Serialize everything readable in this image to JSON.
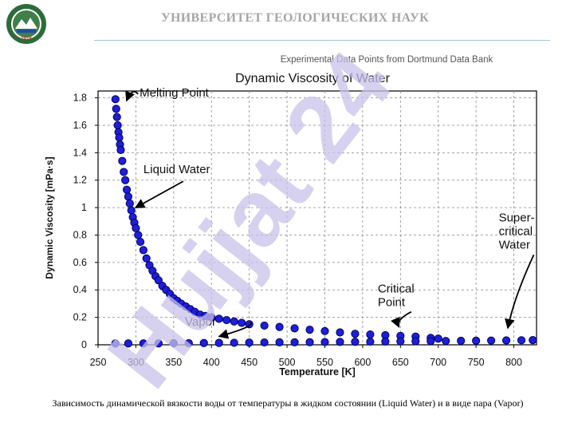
{
  "header": {
    "title": "УНИВЕРСИТЕТ ГЕОЛОГИЧЕСКИХ НАУК"
  },
  "logo": {
    "icon": "university-seal-icon",
    "year_text": "1918"
  },
  "watermark": {
    "text": "Hujjat 24",
    "color": "#c8c2e8"
  },
  "caption": "Зависимость динамической вязкости воды от температуры в жидком состоянии (Liquid Water) и в виде пара (Vapor)",
  "chart_data": {
    "type": "scatter",
    "supertitle": "Experimental Data Points from Dortmund Data Bank",
    "title": "Dynamic Viscosity of Water",
    "xlabel": "Temperature [K]",
    "ylabel": "Dynamic Viscosity [mPa·s]",
    "xlim": [
      250,
      830
    ],
    "ylim": [
      0,
      1.85
    ],
    "xticks": [
      250,
      300,
      350,
      400,
      450,
      500,
      550,
      600,
      650,
      700,
      750,
      800
    ],
    "yticks": [
      0,
      0.2,
      0.4,
      0.6,
      0.8,
      1,
      1.2,
      1.4,
      1.6,
      1.8
    ],
    "ytick_labels": [
      "0",
      "0.2",
      "0.4",
      "0.6",
      "0.8",
      "1",
      "1.2",
      "1.4",
      "1.6",
      "1.8"
    ],
    "grid": true,
    "marker_color": "#1f1fd6",
    "marker_edge": "#00006b",
    "series": [
      {
        "x": [
          273,
          274,
          275,
          276,
          277,
          278,
          279,
          280,
          282,
          284,
          286,
          288,
          290,
          292,
          294,
          296,
          298,
          300,
          303,
          306,
          310,
          314,
          318,
          322,
          326,
          330,
          335,
          340,
          345,
          350,
          355,
          360,
          366,
          372,
          378,
          385,
          392,
          400,
          410,
          420,
          430,
          440,
          450,
          470,
          490,
          510,
          530,
          550,
          570,
          590,
          610,
          630,
          650,
          670,
          690,
          700
        ],
        "y": [
          1.79,
          1.72,
          1.66,
          1.6,
          1.55,
          1.51,
          1.46,
          1.42,
          1.34,
          1.26,
          1.2,
          1.13,
          1.08,
          1.03,
          0.98,
          0.93,
          0.89,
          0.85,
          0.8,
          0.75,
          0.69,
          0.63,
          0.58,
          0.54,
          0.5,
          0.47,
          0.43,
          0.4,
          0.37,
          0.34,
          0.32,
          0.3,
          0.28,
          0.26,
          0.24,
          0.22,
          0.21,
          0.2,
          0.19,
          0.18,
          0.17,
          0.16,
          0.15,
          0.14,
          0.13,
          0.12,
          0.11,
          0.1,
          0.09,
          0.08,
          0.075,
          0.07,
          0.065,
          0.06,
          0.05,
          0.045
        ]
      },
      {
        "x": [
          273,
          290,
          310,
          330,
          350,
          370,
          390,
          410,
          430,
          450,
          470,
          490,
          510,
          530,
          550,
          570,
          590,
          610,
          630,
          650,
          670,
          690,
          710,
          730,
          750,
          770,
          790,
          810,
          825
        ],
        "y": [
          0.01,
          0.01,
          0.01,
          0.01,
          0.012,
          0.012,
          0.013,
          0.014,
          0.015,
          0.016,
          0.017,
          0.018,
          0.018,
          0.019,
          0.02,
          0.021,
          0.022,
          0.023,
          0.024,
          0.025,
          0.026,
          0.027,
          0.028,
          0.029,
          0.03,
          0.031,
          0.032,
          0.033,
          0.034
        ]
      }
    ],
    "annotations": [
      {
        "text": "Melting Point",
        "x": 275,
        "y": 1.79,
        "label_x": 305,
        "label_y": 1.81
      },
      {
        "text": "Liquid Water",
        "x": 291,
        "y": 0.97,
        "label_x": 310,
        "label_y": 1.25
      },
      {
        "text": "Vapor",
        "x": 410,
        "y": 0.02,
        "label_x": 365,
        "label_y": 0.14
      },
      {
        "text": "Critical Point",
        "x": 648,
        "y": 0.06,
        "label_x": 620,
        "label_y": 0.38
      },
      {
        "text": "Super-critical Water",
        "x": 792,
        "y": 0.04,
        "label_x": 780,
        "label_y": 0.9
      }
    ]
  }
}
